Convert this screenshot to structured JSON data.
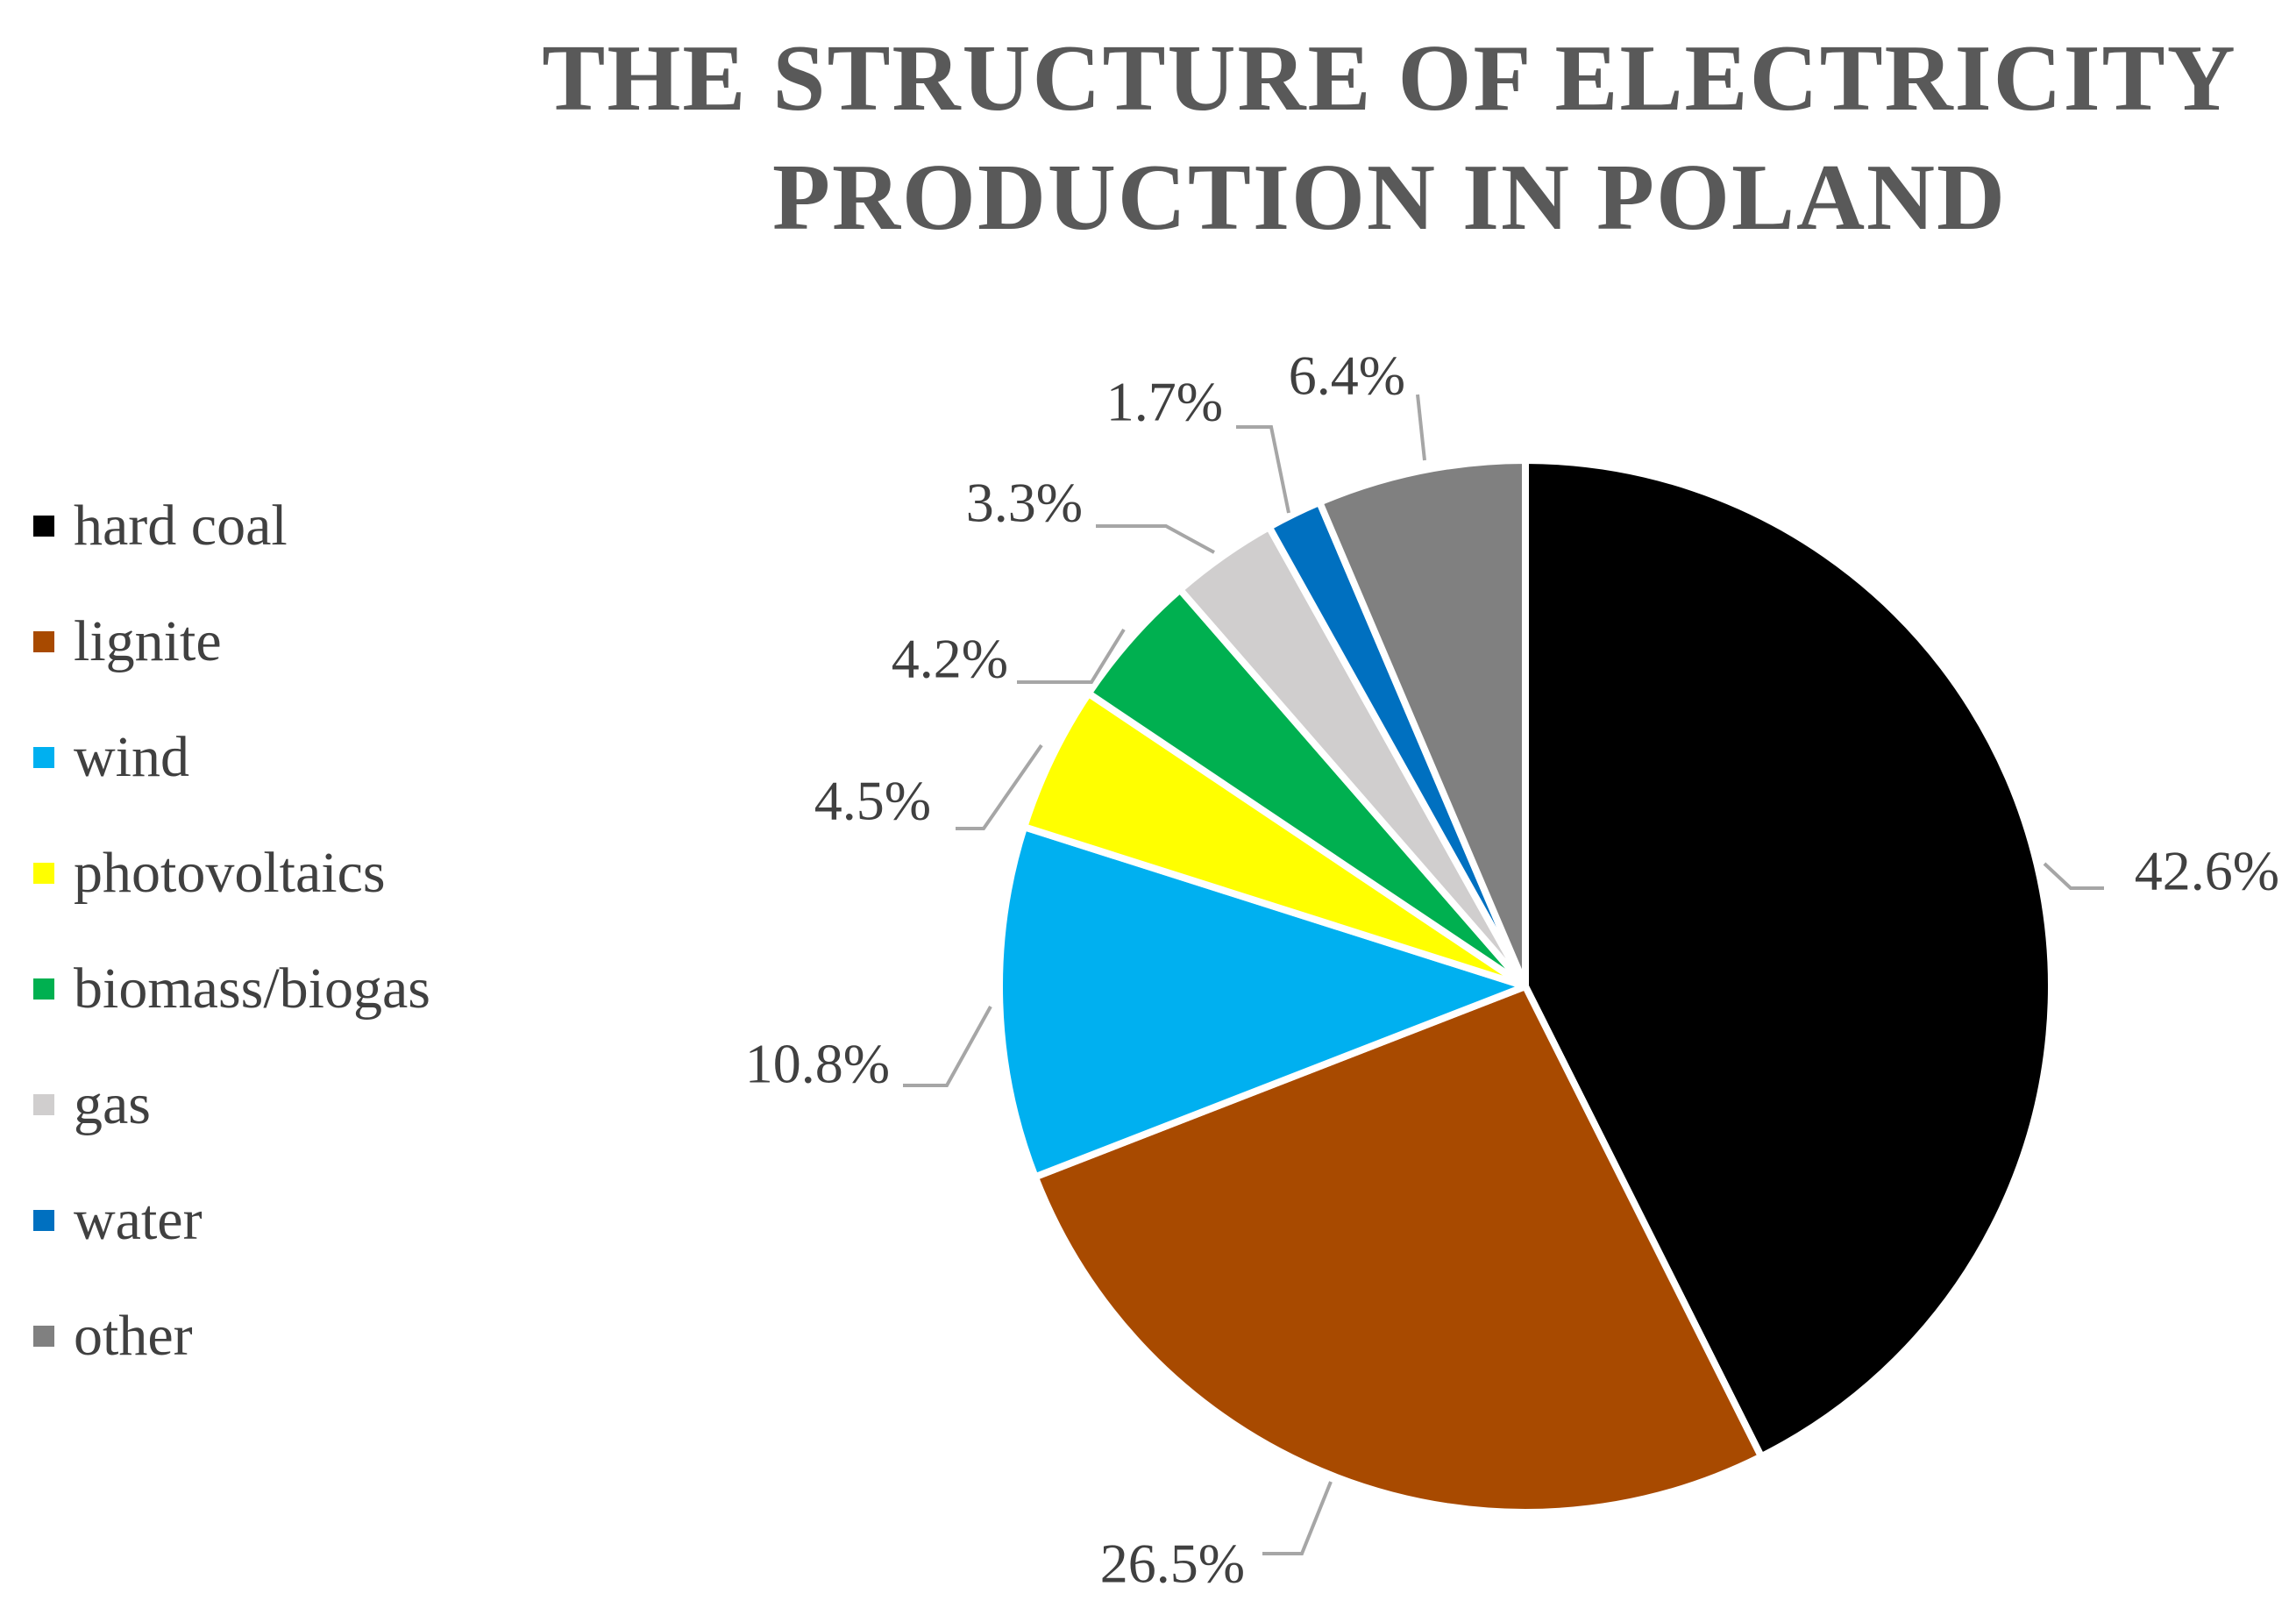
{
  "chart_data": {
    "type": "pie",
    "title": "THE STRUCTURE OF ELECTRICITY PRODUCTION IN POLAND",
    "title_lines": [
      "THE STRUCTURE OF ELECTRICITY",
      "PRODUCTION IN POLAND"
    ],
    "legend_position": "left",
    "start_angle_deg": 0,
    "direction": "clockwise",
    "slices": [
      {
        "name": "hard coal",
        "value": 42.6,
        "label": "42.6%",
        "color": "#000000"
      },
      {
        "name": "lignite",
        "value": 26.5,
        "label": "26.5%",
        "color": "#A84A00"
      },
      {
        "name": "wind",
        "value": 10.8,
        "label": "10.8%",
        "color": "#00B0F0"
      },
      {
        "name": "photovoltaics",
        "value": 4.5,
        "label": "4.5%",
        "color": "#FFFF00"
      },
      {
        "name": "biomass/biogas",
        "value": 4.2,
        "label": "4.2%",
        "color": "#00B050"
      },
      {
        "name": "gas",
        "value": 3.3,
        "label": "3.3%",
        "color": "#D0CECE"
      },
      {
        "name": "water",
        "value": 1.7,
        "label": "1.7%",
        "color": "#0070C0"
      },
      {
        "name": "other",
        "value": 6.4,
        "label": "6.4%",
        "color": "#808080"
      }
    ]
  }
}
